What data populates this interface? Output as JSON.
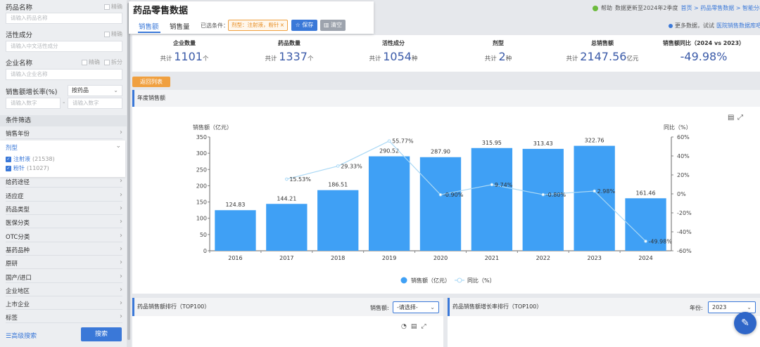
{
  "sidebar": {
    "drug_name_label": "药品名称",
    "drug_name_fuzzy": "精确",
    "drug_name_placeholder": "请输入药品名称",
    "active_label": "活性成分",
    "active_fuzzy": "精确",
    "active_placeholder": "请输入中文活性成分",
    "company_label": "企业名称",
    "company_fuzzy": "精确",
    "company_split": "拆分",
    "company_placeholder": "请输入企业名称",
    "growth_label": "销售额增长率(%)",
    "growth_select": "按药品",
    "growth_min_placeholder": "请输入数字",
    "growth_sep": "-",
    "growth_max_placeholder": "请输入数字",
    "filter_section": "条件筛选",
    "filter_items": [
      "销售年份",
      "给药途径",
      "适应症",
      "药品类型",
      "医保分类",
      "OTC分类",
      "基药品种",
      "原研",
      "国产/进口",
      "企业地区",
      "上市企业",
      "标签"
    ],
    "dosage_panel": {
      "title": "剂型",
      "options": [
        {
          "label": "注射液",
          "count": "(21538)"
        },
        {
          "label": "粉针",
          "count": "(11027)"
        }
      ]
    },
    "advanced_search": "高级搜索",
    "search_button": "搜索"
  },
  "header": {
    "title": "药品零售数据",
    "tabs": [
      "销售额",
      "销售量"
    ],
    "selected_label": "已选条件：",
    "chip": "剂型：注射液，粉针",
    "chip_close": "×",
    "save": "保存",
    "clear": "清空",
    "help": "帮助",
    "update_note": "数据更新至2024年2季度",
    "breadcrumb": "首页 > 药品零售数据 > 智能分析",
    "more_data_prefix": "更多数据，试试",
    "more_data_link": "医院销售数据库吧"
  },
  "stats": [
    {
      "label": "企业数量",
      "prefix": "共计",
      "value": "1101",
      "unit": "个"
    },
    {
      "label": "药品数量",
      "prefix": "共计",
      "value": "1337",
      "unit": "个"
    },
    {
      "label": "活性成分",
      "prefix": "共计",
      "value": "1054",
      "unit": "种"
    },
    {
      "label": "剂型",
      "prefix": "共计",
      "value": "2",
      "unit": "种"
    },
    {
      "label": "总销售额",
      "prefix": "共计",
      "value": "2147.56",
      "unit": "亿元"
    },
    {
      "label": "销售额同比（2024 vs 2023）",
      "prefix": "",
      "value": "-49.98%",
      "unit": ""
    }
  ],
  "back_button": "返回列表",
  "chart_panel_title": "年度销售额",
  "chart_data": {
    "type": "bar",
    "categories": [
      "2016",
      "2017",
      "2018",
      "2019",
      "2020",
      "2021",
      "2022",
      "2023",
      "2024"
    ],
    "series": [
      {
        "name": "销售额（亿元）",
        "type": "bar",
        "values": [
          124.83,
          144.21,
          186.51,
          290.52,
          287.9,
          315.95,
          313.43,
          322.76,
          161.46
        ],
        "labels": [
          "124.83",
          "144.21",
          "186.51",
          "290.52",
          "287.90",
          "315.95",
          "313.43",
          "322.76",
          "161.46"
        ]
      },
      {
        "name": "同比（%）",
        "type": "line",
        "values": [
          null,
          15.53,
          29.33,
          55.77,
          -0.9,
          9.74,
          -0.8,
          2.98,
          -49.98
        ],
        "labels": [
          "",
          "15.53%",
          "29.33%",
          "55.77%",
          "-0.90%",
          "9.74%",
          "-0.80%",
          "2.98%",
          "-49.98%"
        ]
      }
    ],
    "ylabel": "销售额（亿元）",
    "y2label": "同比（%）",
    "ylim": [
      0,
      350
    ],
    "yticks": [
      0,
      50,
      100,
      150,
      200,
      250,
      300,
      350
    ],
    "y2lim": [
      -60,
      60
    ],
    "y2ticks": [
      "60%",
      "40%",
      "20%",
      "0%",
      "-20%",
      "-40%",
      "-60%"
    ],
    "legend_position": "bottom",
    "colors": {
      "bar": "#3fa0f5",
      "line": "#a9d8f5"
    }
  },
  "bottom": {
    "left_title": "药品销售额排行（TOP100）",
    "left_select_label": "销售额:",
    "left_select_value": "-请选择-",
    "right_title": "药品销售额增长率排行（TOP100）",
    "right_select_label": "年份:",
    "right_select_value": "2023"
  }
}
